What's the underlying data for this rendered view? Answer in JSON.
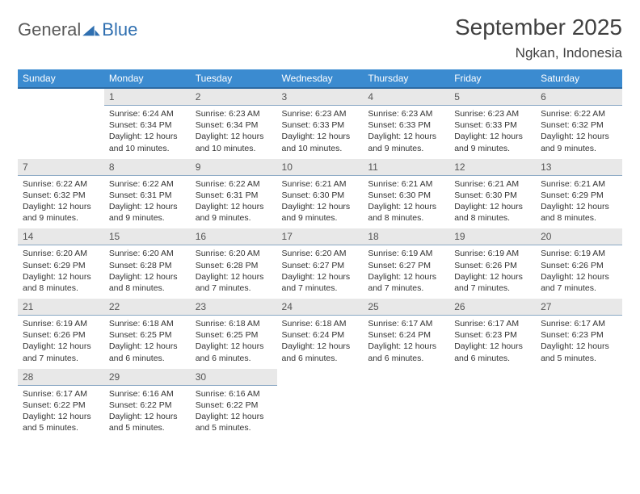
{
  "logo": {
    "general": "General",
    "blue": "Blue"
  },
  "title": "September 2025",
  "location": "Ngkan, Indonesia",
  "colors": {
    "header_bg": "#3b8bd0",
    "header_border": "#2d6aa3",
    "daynum_bg": "#e8e8e8",
    "daynum_border": "#8aa8c4",
    "text": "#333333",
    "logo_gray": "#5a5a5a",
    "logo_blue": "#2f6fb0"
  },
  "weekdays": [
    "Sunday",
    "Monday",
    "Tuesday",
    "Wednesday",
    "Thursday",
    "Friday",
    "Saturday"
  ],
  "days": {
    "1": {
      "sr": "6:24 AM",
      "ss": "6:34 PM",
      "dl": "12 hours and 10 minutes."
    },
    "2": {
      "sr": "6:23 AM",
      "ss": "6:34 PM",
      "dl": "12 hours and 10 minutes."
    },
    "3": {
      "sr": "6:23 AM",
      "ss": "6:33 PM",
      "dl": "12 hours and 10 minutes."
    },
    "4": {
      "sr": "6:23 AM",
      "ss": "6:33 PM",
      "dl": "12 hours and 9 minutes."
    },
    "5": {
      "sr": "6:23 AM",
      "ss": "6:33 PM",
      "dl": "12 hours and 9 minutes."
    },
    "6": {
      "sr": "6:22 AM",
      "ss": "6:32 PM",
      "dl": "12 hours and 9 minutes."
    },
    "7": {
      "sr": "6:22 AM",
      "ss": "6:32 PM",
      "dl": "12 hours and 9 minutes."
    },
    "8": {
      "sr": "6:22 AM",
      "ss": "6:31 PM",
      "dl": "12 hours and 9 minutes."
    },
    "9": {
      "sr": "6:22 AM",
      "ss": "6:31 PM",
      "dl": "12 hours and 9 minutes."
    },
    "10": {
      "sr": "6:21 AM",
      "ss": "6:30 PM",
      "dl": "12 hours and 9 minutes."
    },
    "11": {
      "sr": "6:21 AM",
      "ss": "6:30 PM",
      "dl": "12 hours and 8 minutes."
    },
    "12": {
      "sr": "6:21 AM",
      "ss": "6:30 PM",
      "dl": "12 hours and 8 minutes."
    },
    "13": {
      "sr": "6:21 AM",
      "ss": "6:29 PM",
      "dl": "12 hours and 8 minutes."
    },
    "14": {
      "sr": "6:20 AM",
      "ss": "6:29 PM",
      "dl": "12 hours and 8 minutes."
    },
    "15": {
      "sr": "6:20 AM",
      "ss": "6:28 PM",
      "dl": "12 hours and 8 minutes."
    },
    "16": {
      "sr": "6:20 AM",
      "ss": "6:28 PM",
      "dl": "12 hours and 7 minutes."
    },
    "17": {
      "sr": "6:20 AM",
      "ss": "6:27 PM",
      "dl": "12 hours and 7 minutes."
    },
    "18": {
      "sr": "6:19 AM",
      "ss": "6:27 PM",
      "dl": "12 hours and 7 minutes."
    },
    "19": {
      "sr": "6:19 AM",
      "ss": "6:26 PM",
      "dl": "12 hours and 7 minutes."
    },
    "20": {
      "sr": "6:19 AM",
      "ss": "6:26 PM",
      "dl": "12 hours and 7 minutes."
    },
    "21": {
      "sr": "6:19 AM",
      "ss": "6:26 PM",
      "dl": "12 hours and 7 minutes."
    },
    "22": {
      "sr": "6:18 AM",
      "ss": "6:25 PM",
      "dl": "12 hours and 6 minutes."
    },
    "23": {
      "sr": "6:18 AM",
      "ss": "6:25 PM",
      "dl": "12 hours and 6 minutes."
    },
    "24": {
      "sr": "6:18 AM",
      "ss": "6:24 PM",
      "dl": "12 hours and 6 minutes."
    },
    "25": {
      "sr": "6:17 AM",
      "ss": "6:24 PM",
      "dl": "12 hours and 6 minutes."
    },
    "26": {
      "sr": "6:17 AM",
      "ss": "6:23 PM",
      "dl": "12 hours and 6 minutes."
    },
    "27": {
      "sr": "6:17 AM",
      "ss": "6:23 PM",
      "dl": "12 hours and 5 minutes."
    },
    "28": {
      "sr": "6:17 AM",
      "ss": "6:22 PM",
      "dl": "12 hours and 5 minutes."
    },
    "29": {
      "sr": "6:16 AM",
      "ss": "6:22 PM",
      "dl": "12 hours and 5 minutes."
    },
    "30": {
      "sr": "6:16 AM",
      "ss": "6:22 PM",
      "dl": "12 hours and 5 minutes."
    }
  },
  "grid": [
    [
      null,
      1,
      2,
      3,
      4,
      5,
      6
    ],
    [
      7,
      8,
      9,
      10,
      11,
      12,
      13
    ],
    [
      14,
      15,
      16,
      17,
      18,
      19,
      20
    ],
    [
      21,
      22,
      23,
      24,
      25,
      26,
      27
    ],
    [
      28,
      29,
      30,
      null,
      null,
      null,
      null
    ]
  ],
  "labels": {
    "sunrise": "Sunrise: ",
    "sunset": "Sunset: ",
    "daylight": "Daylight: "
  }
}
